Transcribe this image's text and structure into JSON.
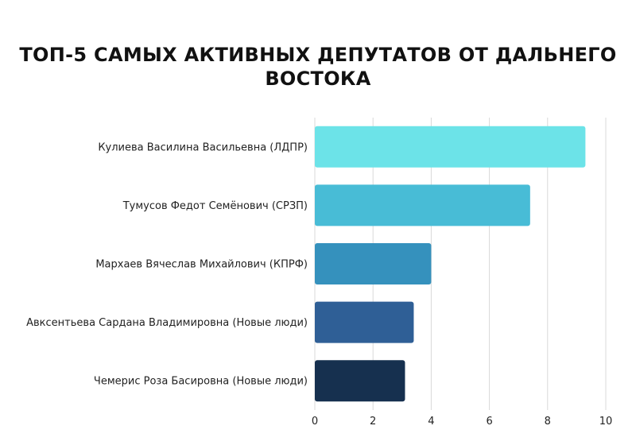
{
  "chart_data": {
    "type": "bar",
    "orientation": "horizontal",
    "title_lines": [
      "ТОП-5 САМЫХ АКТИВНЫХ ДЕПУТАТОВ ОТ ДАЛЬНЕГО",
      "ВОСТОКА"
    ],
    "categories": [
      "Кулиева Василина Васильевна (ЛДПР)",
      "Тумусов Федот Семёнович (СРЗП)",
      "Мархаев Вячеслав Михайлович (КПРФ)",
      "Авксентьева Сардана Владимировна (Новые люди)",
      "Чемерис Роза Басировна (Новые люди)"
    ],
    "values": [
      9.3,
      7.4,
      4.0,
      3.4,
      3.1
    ],
    "colors": [
      "#6ce3e8",
      "#48bcd6",
      "#3591bd",
      "#2f5f96",
      "#16304f"
    ],
    "xlim": [
      0,
      10
    ],
    "xticks": [
      "0",
      "2",
      "4",
      "6",
      "8",
      "10"
    ],
    "grid": true,
    "legend": "none"
  }
}
